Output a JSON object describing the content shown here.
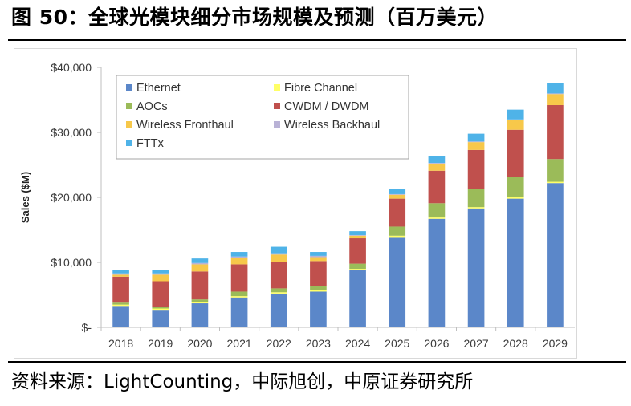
{
  "header": {
    "title": "图 50：全球光模块细分市场规模及预测（百万美元）"
  },
  "footer": {
    "source": "资料来源：LightCounting，中际旭创，中原证券研究所"
  },
  "chart_data": {
    "type": "bar",
    "stacked": true,
    "categories": [
      "2018",
      "2019",
      "2020",
      "2021",
      "2022",
      "2023",
      "2024",
      "2025",
      "2026",
      "2027",
      "2028",
      "2029"
    ],
    "ylabel": "Sales ($M)",
    "ylim": [
      0,
      40000
    ],
    "yticks": [
      0,
      10000,
      20000,
      30000,
      40000
    ],
    "ytick_labels": [
      "$-",
      "$10,000",
      "$20,000",
      "$30,000",
      "$40,000"
    ],
    "legend_position": "top-left",
    "series": [
      {
        "name": "Ethernet",
        "color": "#5b87c9",
        "values": [
          3300,
          2700,
          3700,
          4600,
          5200,
          5500,
          8800,
          13900,
          16700,
          18300,
          19800,
          22200
        ]
      },
      {
        "name": "Fibre Channel",
        "color": "#ffff66",
        "values": [
          200,
          200,
          200,
          200,
          200,
          200,
          200,
          200,
          200,
          200,
          200,
          200
        ]
      },
      {
        "name": "AOCs",
        "color": "#9bbb59",
        "values": [
          300,
          300,
          400,
          700,
          600,
          600,
          800,
          1400,
          2200,
          2800,
          3200,
          3500
        ]
      },
      {
        "name": "CWDM / DWDM",
        "color": "#c0504d",
        "values": [
          4000,
          3900,
          4300,
          4200,
          4100,
          3900,
          3900,
          4300,
          5000,
          6000,
          7200,
          8300
        ]
      },
      {
        "name": "Wireless Fronthaul",
        "color": "#f7c84a",
        "values": [
          300,
          1000,
          1100,
          1000,
          1100,
          600,
          400,
          600,
          1100,
          1200,
          1500,
          1700
        ]
      },
      {
        "name": "Wireless Backhaul",
        "color": "#b9b2d6",
        "values": [
          200,
          200,
          200,
          200,
          200,
          200,
          100,
          100,
          100,
          100,
          100,
          100
        ]
      },
      {
        "name": "FTTx",
        "color": "#4fb3e8",
        "values": [
          500,
          500,
          700,
          700,
          1000,
          600,
          600,
          800,
          1000,
          1200,
          1500,
          1600
        ]
      }
    ]
  }
}
